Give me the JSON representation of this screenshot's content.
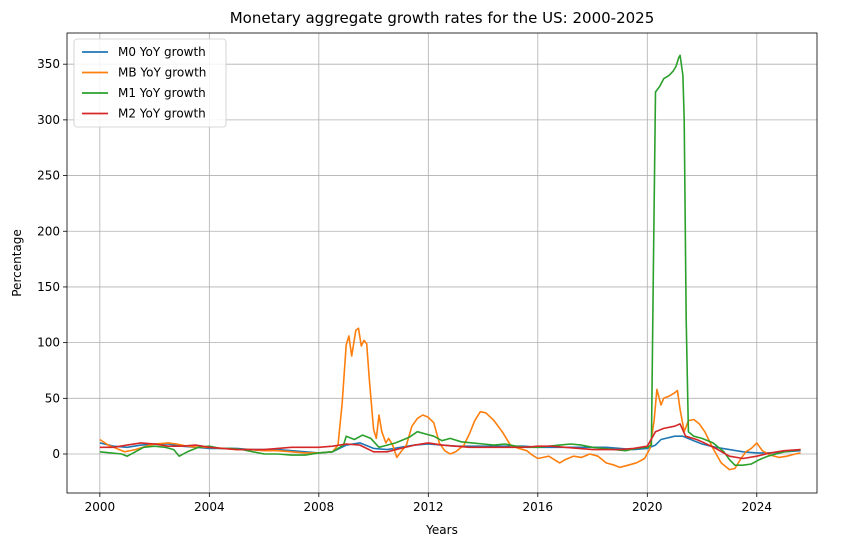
{
  "chart_data": {
    "type": "line",
    "title": "Monetary aggregate growth rates for the US: 2000-2025",
    "xlabel": "Years",
    "ylabel": "Percentage",
    "xlim": [
      1998.8,
      2026.2
    ],
    "ylim": [
      -35,
      378
    ],
    "x_ticks": [
      2000,
      2004,
      2008,
      2012,
      2016,
      2020,
      2024
    ],
    "x_tick_labels": [
      "2000",
      "2004",
      "2008",
      "2012",
      "2016",
      "2020",
      "2024"
    ],
    "y_ticks": [
      0,
      50,
      100,
      150,
      200,
      250,
      300,
      350
    ],
    "y_tick_labels": [
      "0",
      "50",
      "100",
      "150",
      "200",
      "250",
      "300",
      "350"
    ],
    "grid": true,
    "legend_position": "top-left",
    "series": [
      {
        "name": "M0 YoY growth",
        "color": "#1f77b4",
        "points": [
          [
            2000.0,
            10
          ],
          [
            2000.5,
            7
          ],
          [
            2001.0,
            6
          ],
          [
            2001.5,
            8
          ],
          [
            2002.0,
            9
          ],
          [
            2002.5,
            9
          ],
          [
            2003.0,
            7
          ],
          [
            2003.5,
            6
          ],
          [
            2004.0,
            5
          ],
          [
            2004.5,
            5
          ],
          [
            2005.0,
            5
          ],
          [
            2005.5,
            4
          ],
          [
            2006.0,
            4
          ],
          [
            2006.5,
            4
          ],
          [
            2007.0,
            3
          ],
          [
            2007.5,
            2
          ],
          [
            2008.0,
            1
          ],
          [
            2008.5,
            2
          ],
          [
            2009.0,
            8
          ],
          [
            2009.5,
            10
          ],
          [
            2010.0,
            5
          ],
          [
            2010.5,
            4
          ],
          [
            2011.0,
            6
          ],
          [
            2011.5,
            8
          ],
          [
            2012.0,
            9
          ],
          [
            2012.5,
            8
          ],
          [
            2013.0,
            7
          ],
          [
            2013.5,
            7
          ],
          [
            2014.0,
            7
          ],
          [
            2014.5,
            7
          ],
          [
            2015.0,
            7
          ],
          [
            2015.5,
            7
          ],
          [
            2016.0,
            6
          ],
          [
            2016.5,
            6
          ],
          [
            2017.0,
            6
          ],
          [
            2017.5,
            6
          ],
          [
            2018.0,
            6
          ],
          [
            2018.5,
            6
          ],
          [
            2019.0,
            5
          ],
          [
            2019.5,
            4
          ],
          [
            2020.0,
            5
          ],
          [
            2020.3,
            8
          ],
          [
            2020.5,
            13
          ],
          [
            2021.0,
            16
          ],
          [
            2021.3,
            16
          ],
          [
            2021.7,
            12
          ],
          [
            2022.0,
            9
          ],
          [
            2022.5,
            6
          ],
          [
            2023.0,
            4
          ],
          [
            2023.5,
            2
          ],
          [
            2024.0,
            1
          ],
          [
            2024.5,
            1
          ],
          [
            2025.0,
            2
          ],
          [
            2025.6,
            3
          ]
        ]
      },
      {
        "name": "MB YoY growth",
        "color": "#ff7f0e",
        "points": [
          [
            2000.0,
            13
          ],
          [
            2000.3,
            8
          ],
          [
            2000.6,
            5
          ],
          [
            2000.9,
            2
          ],
          [
            2001.3,
            4
          ],
          [
            2001.7,
            7
          ],
          [
            2002.0,
            9
          ],
          [
            2002.5,
            10
          ],
          [
            2002.8,
            9
          ],
          [
            2003.2,
            7
          ],
          [
            2003.6,
            6
          ],
          [
            2004.0,
            6
          ],
          [
            2004.5,
            5
          ],
          [
            2005.0,
            4
          ],
          [
            2005.5,
            4
          ],
          [
            2006.0,
            3
          ],
          [
            2006.5,
            3
          ],
          [
            2007.0,
            2
          ],
          [
            2007.5,
            1
          ],
          [
            2008.0,
            1
          ],
          [
            2008.5,
            2
          ],
          [
            2008.7,
            8
          ],
          [
            2008.85,
            45
          ],
          [
            2009.0,
            98
          ],
          [
            2009.1,
            106
          ],
          [
            2009.2,
            88
          ],
          [
            2009.35,
            111
          ],
          [
            2009.45,
            113
          ],
          [
            2009.55,
            97
          ],
          [
            2009.65,
            102
          ],
          [
            2009.75,
            99
          ],
          [
            2009.85,
            65
          ],
          [
            2010.0,
            22
          ],
          [
            2010.1,
            14
          ],
          [
            2010.2,
            35
          ],
          [
            2010.3,
            20
          ],
          [
            2010.45,
            10
          ],
          [
            2010.55,
            14
          ],
          [
            2010.7,
            8
          ],
          [
            2010.85,
            -3
          ],
          [
            2011.0,
            2
          ],
          [
            2011.2,
            8
          ],
          [
            2011.4,
            25
          ],
          [
            2011.6,
            32
          ],
          [
            2011.8,
            35
          ],
          [
            2012.0,
            33
          ],
          [
            2012.2,
            28
          ],
          [
            2012.4,
            10
          ],
          [
            2012.6,
            3
          ],
          [
            2012.8,
            0
          ],
          [
            2013.0,
            2
          ],
          [
            2013.3,
            8
          ],
          [
            2013.5,
            18
          ],
          [
            2013.7,
            30
          ],
          [
            2013.9,
            38
          ],
          [
            2014.1,
            37
          ],
          [
            2014.4,
            30
          ],
          [
            2014.7,
            20
          ],
          [
            2015.0,
            8
          ],
          [
            2015.3,
            5
          ],
          [
            2015.6,
            3
          ],
          [
            2015.8,
            -1
          ],
          [
            2016.0,
            -4
          ],
          [
            2016.2,
            -3
          ],
          [
            2016.4,
            -2
          ],
          [
            2016.6,
            -5
          ],
          [
            2016.8,
            -8
          ],
          [
            2017.0,
            -5
          ],
          [
            2017.3,
            -2
          ],
          [
            2017.6,
            -3
          ],
          [
            2017.9,
            0
          ],
          [
            2018.2,
            -2
          ],
          [
            2018.5,
            -8
          ],
          [
            2018.8,
            -10
          ],
          [
            2019.0,
            -12
          ],
          [
            2019.3,
            -10
          ],
          [
            2019.6,
            -8
          ],
          [
            2019.9,
            -4
          ],
          [
            2020.1,
            5
          ],
          [
            2020.25,
            30
          ],
          [
            2020.35,
            58
          ],
          [
            2020.5,
            44
          ],
          [
            2020.6,
            50
          ],
          [
            2020.8,
            52
          ],
          [
            2021.0,
            55
          ],
          [
            2021.1,
            57
          ],
          [
            2021.2,
            40
          ],
          [
            2021.35,
            20
          ],
          [
            2021.5,
            30
          ],
          [
            2021.7,
            31
          ],
          [
            2021.9,
            27
          ],
          [
            2022.1,
            20
          ],
          [
            2022.4,
            5
          ],
          [
            2022.7,
            -8
          ],
          [
            2023.0,
            -14
          ],
          [
            2023.2,
            -13
          ],
          [
            2023.4,
            -5
          ],
          [
            2023.6,
            2
          ],
          [
            2023.8,
            5
          ],
          [
            2024.0,
            10
          ],
          [
            2024.2,
            3
          ],
          [
            2024.5,
            -1
          ],
          [
            2024.8,
            -3
          ],
          [
            2025.1,
            -2
          ],
          [
            2025.4,
            0
          ],
          [
            2025.6,
            1
          ]
        ]
      },
      {
        "name": "M1 YoY growth",
        "color": "#2ca02c",
        "points": [
          [
            2000.0,
            2
          ],
          [
            2000.4,
            1
          ],
          [
            2000.8,
            0
          ],
          [
            2001.0,
            -2
          ],
          [
            2001.3,
            2
          ],
          [
            2001.6,
            6
          ],
          [
            2002.0,
            7
          ],
          [
            2002.4,
            6
          ],
          [
            2002.7,
            4
          ],
          [
            2002.9,
            -2
          ],
          [
            2003.2,
            2
          ],
          [
            2003.6,
            6
          ],
          [
            2004.0,
            7
          ],
          [
            2004.4,
            5
          ],
          [
            2004.8,
            5
          ],
          [
            2005.2,
            4
          ],
          [
            2005.6,
            2
          ],
          [
            2006.0,
            0
          ],
          [
            2006.5,
            0
          ],
          [
            2007.0,
            -1
          ],
          [
            2007.5,
            -1
          ],
          [
            2008.0,
            1
          ],
          [
            2008.5,
            2
          ],
          [
            2008.9,
            8
          ],
          [
            2009.0,
            16
          ],
          [
            2009.3,
            13
          ],
          [
            2009.6,
            17
          ],
          [
            2009.9,
            14
          ],
          [
            2010.2,
            6
          ],
          [
            2010.5,
            8
          ],
          [
            2010.8,
            10
          ],
          [
            2011.0,
            12
          ],
          [
            2011.3,
            15
          ],
          [
            2011.6,
            20
          ],
          [
            2011.9,
            18
          ],
          [
            2012.2,
            16
          ],
          [
            2012.5,
            12
          ],
          [
            2012.8,
            14
          ],
          [
            2013.2,
            11
          ],
          [
            2013.6,
            10
          ],
          [
            2014.0,
            9
          ],
          [
            2014.4,
            8
          ],
          [
            2014.8,
            9
          ],
          [
            2015.2,
            7
          ],
          [
            2015.6,
            6
          ],
          [
            2016.0,
            6
          ],
          [
            2016.4,
            7
          ],
          [
            2016.8,
            8
          ],
          [
            2017.2,
            9
          ],
          [
            2017.6,
            8
          ],
          [
            2018.0,
            6
          ],
          [
            2018.4,
            5
          ],
          [
            2018.8,
            4
          ],
          [
            2019.2,
            3
          ],
          [
            2019.6,
            5
          ],
          [
            2020.0,
            6
          ],
          [
            2020.15,
            8
          ],
          [
            2020.22,
            160
          ],
          [
            2020.3,
            325
          ],
          [
            2020.45,
            330
          ],
          [
            2020.6,
            337
          ],
          [
            2020.8,
            340
          ],
          [
            2020.95,
            344
          ],
          [
            2021.05,
            348
          ],
          [
            2021.15,
            356
          ],
          [
            2021.2,
            358
          ],
          [
            2021.3,
            340
          ],
          [
            2021.35,
            300
          ],
          [
            2021.42,
            120
          ],
          [
            2021.5,
            20
          ],
          [
            2021.7,
            16
          ],
          [
            2022.0,
            14
          ],
          [
            2022.4,
            10
          ],
          [
            2022.8,
            2
          ],
          [
            2023.0,
            -5
          ],
          [
            2023.2,
            -10
          ],
          [
            2023.5,
            -10
          ],
          [
            2023.8,
            -9
          ],
          [
            2024.1,
            -5
          ],
          [
            2024.4,
            -2
          ],
          [
            2024.7,
            0
          ],
          [
            2025.0,
            2
          ],
          [
            2025.3,
            3
          ],
          [
            2025.6,
            4
          ]
        ]
      },
      {
        "name": "M2 YoY growth",
        "color": "#d62728",
        "points": [
          [
            2000.0,
            6
          ],
          [
            2000.5,
            6
          ],
          [
            2001.0,
            8
          ],
          [
            2001.5,
            10
          ],
          [
            2002.0,
            9
          ],
          [
            2002.5,
            7
          ],
          [
            2003.0,
            7
          ],
          [
            2003.5,
            8
          ],
          [
            2004.0,
            6
          ],
          [
            2004.5,
            5
          ],
          [
            2005.0,
            4
          ],
          [
            2005.5,
            4
          ],
          [
            2006.0,
            4
          ],
          [
            2006.5,
            5
          ],
          [
            2007.0,
            6
          ],
          [
            2007.5,
            6
          ],
          [
            2008.0,
            6
          ],
          [
            2008.5,
            7
          ],
          [
            2009.0,
            9
          ],
          [
            2009.5,
            8
          ],
          [
            2010.0,
            2
          ],
          [
            2010.5,
            2
          ],
          [
            2011.0,
            5
          ],
          [
            2011.5,
            8
          ],
          [
            2012.0,
            10
          ],
          [
            2012.5,
            8
          ],
          [
            2013.0,
            7
          ],
          [
            2013.5,
            6
          ],
          [
            2014.0,
            6
          ],
          [
            2014.5,
            6
          ],
          [
            2015.0,
            6
          ],
          [
            2015.5,
            6
          ],
          [
            2016.0,
            7
          ],
          [
            2016.5,
            7
          ],
          [
            2017.0,
            6
          ],
          [
            2017.5,
            5
          ],
          [
            2018.0,
            4
          ],
          [
            2018.5,
            4
          ],
          [
            2019.0,
            4
          ],
          [
            2019.5,
            5
          ],
          [
            2020.0,
            7
          ],
          [
            2020.3,
            20
          ],
          [
            2020.6,
            23
          ],
          [
            2021.0,
            25
          ],
          [
            2021.2,
            27
          ],
          [
            2021.4,
            16
          ],
          [
            2021.8,
            13
          ],
          [
            2022.0,
            11
          ],
          [
            2022.5,
            5
          ],
          [
            2023.0,
            -2
          ],
          [
            2023.5,
            -4
          ],
          [
            2024.0,
            -2
          ],
          [
            2024.5,
            1
          ],
          [
            2025.0,
            3
          ],
          [
            2025.6,
            4
          ]
        ]
      }
    ]
  }
}
